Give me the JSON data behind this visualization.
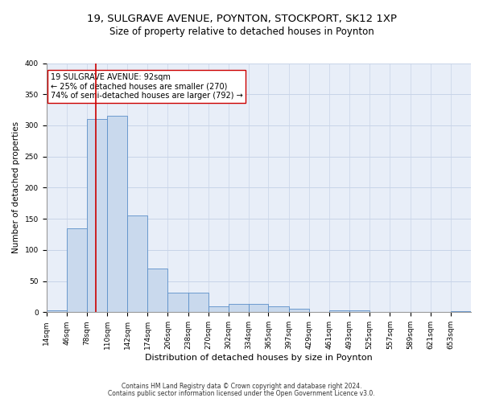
{
  "title1": "19, SULGRAVE AVENUE, POYNTON, STOCKPORT, SK12 1XP",
  "title2": "Size of property relative to detached houses in Poynton",
  "xlabel": "Distribution of detached houses by size in Poynton",
  "ylabel": "Number of detached properties",
  "footnote1": "Contains HM Land Registry data © Crown copyright and database right 2024.",
  "footnote2": "Contains public sector information licensed under the Open Government Licence v3.0.",
  "annotation_line1": "19 SULGRAVE AVENUE: 92sqm",
  "annotation_line2": "← 25% of detached houses are smaller (270)",
  "annotation_line3": "74% of semi-detached houses are larger (792) →",
  "bar_color": "#c9d9ed",
  "bar_edge_color": "#5b8fc9",
  "bin_labels": [
    "14sqm",
    "46sqm",
    "78sqm",
    "110sqm",
    "142sqm",
    "174sqm",
    "206sqm",
    "238sqm",
    "270sqm",
    "302sqm",
    "334sqm",
    "365sqm",
    "397sqm",
    "429sqm",
    "461sqm",
    "493sqm",
    "525sqm",
    "557sqm",
    "589sqm",
    "621sqm",
    "653sqm"
  ],
  "bin_edges": [
    14,
    46,
    78,
    110,
    142,
    174,
    206,
    238,
    270,
    302,
    334,
    365,
    397,
    429,
    461,
    493,
    525,
    557,
    589,
    621,
    653,
    685
  ],
  "bar_heights": [
    3,
    135,
    310,
    315,
    156,
    70,
    31,
    31,
    10,
    13,
    13,
    9,
    6,
    0,
    3,
    3,
    0,
    0,
    0,
    0,
    2
  ],
  "property_size": 92,
  "vline_color": "#cc0000",
  "ylim": [
    0,
    400
  ],
  "yticks": [
    0,
    50,
    100,
    150,
    200,
    250,
    300,
    350,
    400
  ],
  "grid_color": "#c8d4e8",
  "bg_color": "#e8eef8",
  "annotation_box_color": "#ffffff",
  "annotation_box_edge": "#cc0000",
  "title1_fontsize": 9.5,
  "title2_fontsize": 8.5,
  "xlabel_fontsize": 8,
  "ylabel_fontsize": 7.5,
  "tick_fontsize": 6.5,
  "annotation_fontsize": 7,
  "footnote_fontsize": 5.5
}
